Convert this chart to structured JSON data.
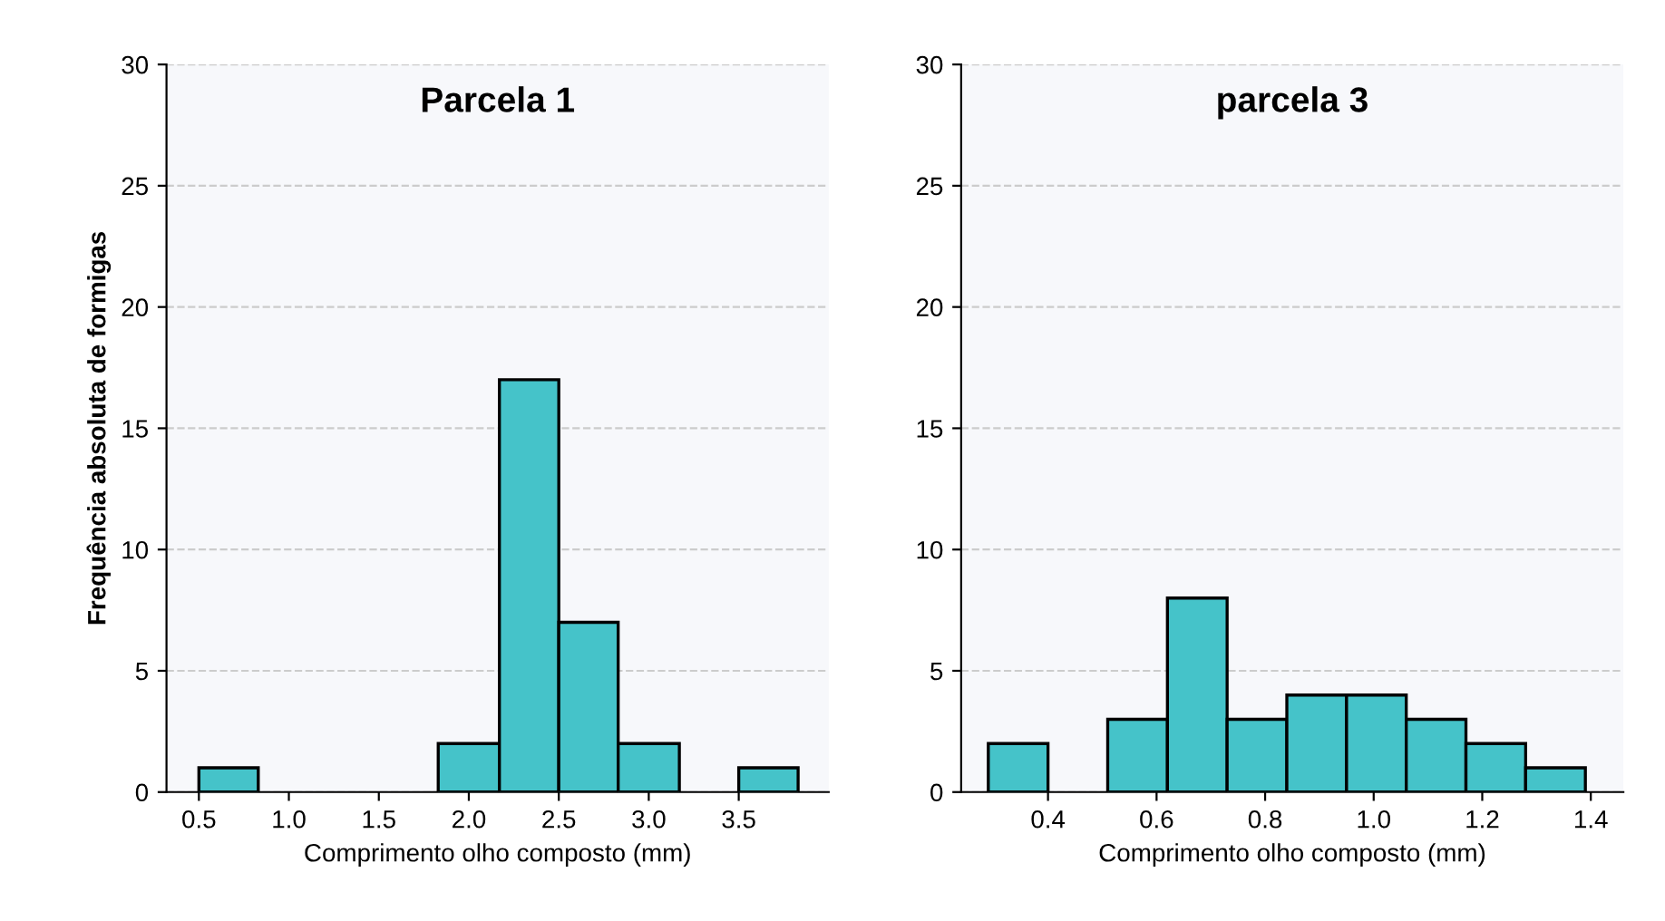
{
  "chart_data": [
    {
      "type": "histogram",
      "title": "Parcela 1",
      "xlabel": "Comprimento olho composto (mm)",
      "ylabel": "Frequência absoluta de formigas",
      "bins": [
        0.5,
        0.83,
        1.83,
        2.17,
        2.5,
        2.83,
        3.17,
        3.5,
        3.83
      ],
      "values": [
        1,
        0,
        2,
        17,
        7,
        2,
        0,
        1
      ],
      "color": "#45c3c9",
      "xlim": [
        0.32,
        4.0
      ],
      "ylim": [
        0,
        30
      ],
      "xticks": [
        0.5,
        {
          "value": 1,
          "label": "1.0"
        },
        1.5,
        {
          "value": 2,
          "label": "2.0"
        },
        2.5,
        {
          "value": 3,
          "label": "3.0"
        },
        3.5
      ],
      "yticks": [
        0,
        5,
        10,
        15,
        20,
        25,
        30
      ],
      "grid": "y"
    },
    {
      "type": "histogram",
      "title": "parcela 3",
      "xlabel": "Comprimento olho composto (mm)",
      "bins": [
        0.29,
        0.4,
        0.51,
        0.62,
        0.73,
        0.84,
        0.95,
        1.06,
        1.17,
        1.28,
        1.39
      ],
      "values": [
        2,
        0,
        3,
        8,
        3,
        4,
        4,
        3,
        2,
        1
      ],
      "color": "#45c3c9",
      "xlim": [
        0.24,
        1.46
      ],
      "ylim": [
        0,
        30
      ],
      "xticks": [
        0.4,
        0.6,
        0.8,
        {
          "value": 1,
          "label": "1.0"
        },
        1.2,
        1.4
      ],
      "yticks": [
        0,
        5,
        10,
        15,
        20,
        25,
        30
      ],
      "grid": "y"
    }
  ]
}
